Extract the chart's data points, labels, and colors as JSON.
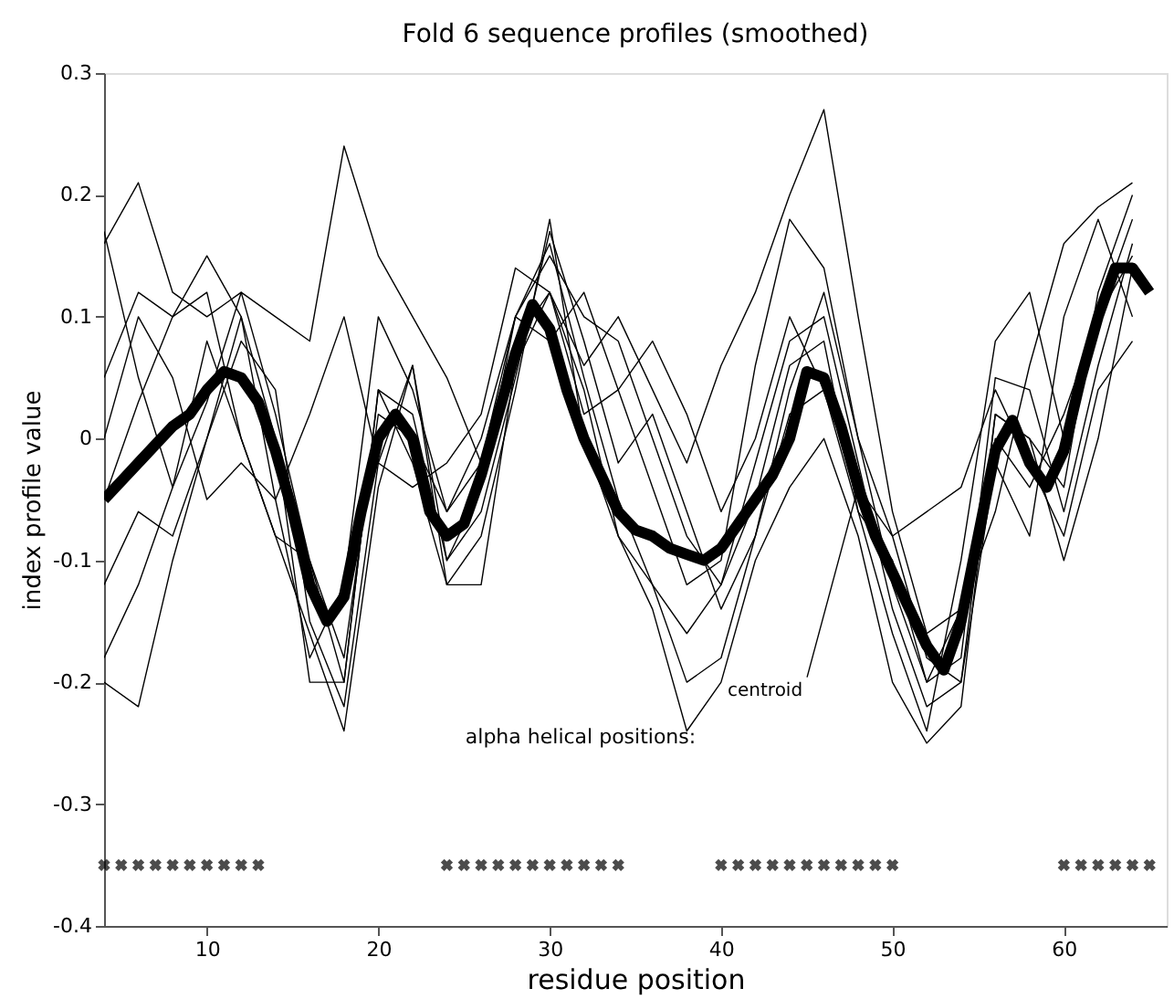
{
  "chart_data": {
    "type": "line",
    "title": "Fold 6 sequence profiles (smoothed)",
    "xlabel": "residue position",
    "ylabel": "index profile value",
    "x": [
      4,
      6,
      8,
      10,
      12,
      14,
      16,
      18,
      20,
      22,
      24,
      26,
      28,
      30,
      32,
      34,
      36,
      38,
      40,
      42,
      44,
      46,
      48,
      50,
      52,
      54,
      56,
      58,
      60,
      62,
      64
    ],
    "xlim": [
      4,
      66
    ],
    "ylim": [
      -0.4,
      0.3
    ],
    "xticks": [
      10,
      20,
      30,
      40,
      50,
      60
    ],
    "yticks": [
      -0.4,
      -0.3,
      -0.2,
      -0.1,
      0,
      0.1,
      0.2,
      0.3
    ],
    "grid": false,
    "marker": "none",
    "line_style": "solid",
    "annotations": [
      "alpha helical positions:",
      {
        "text": "centroid",
        "x": 48,
        "y": -0.04
      }
    ],
    "series": [
      {
        "color": "#000000",
        "values": [
          0.16,
          0.21,
          0.12,
          0.1,
          0.12,
          0.02,
          -0.1,
          -0.2,
          0.04,
          0.02,
          -0.1,
          -0.04,
          0.1,
          0.16,
          0.05,
          -0.05,
          -0.12,
          -0.16,
          -0.12,
          -0.02,
          0.08,
          0.1,
          -0.02,
          -0.14,
          -0.22,
          -0.2,
          0.02,
          0.0,
          -0.04,
          0.12,
          0.2
        ]
      },
      {
        "color": "#000000",
        "values": [
          -0.2,
          -0.22,
          -0.1,
          0.0,
          0.08,
          0.04,
          -0.15,
          -0.22,
          -0.02,
          0.06,
          -0.1,
          -0.06,
          0.05,
          0.17,
          0.08,
          -0.02,
          0.02,
          -0.06,
          -0.14,
          -0.08,
          0.04,
          0.12,
          0.0,
          -0.12,
          -0.2,
          -0.18,
          0.05,
          0.04,
          -0.06,
          0.06,
          0.16
        ]
      },
      {
        "color": "#000000",
        "values": [
          -0.05,
          0.03,
          0.1,
          0.15,
          0.1,
          -0.05,
          -0.18,
          -0.12,
          0.1,
          0.04,
          -0.06,
          0.0,
          0.1,
          0.15,
          0.1,
          0.08,
          0.0,
          -0.08,
          -0.12,
          -0.05,
          0.06,
          0.08,
          -0.06,
          -0.16,
          -0.24,
          -0.1,
          0.08,
          0.12,
          0.0,
          0.1,
          0.18
        ]
      },
      {
        "color": "#000000",
        "values": [
          0.17,
          0.05,
          -0.04,
          0.03,
          0.12,
          0.1,
          0.08,
          0.24,
          0.15,
          0.1,
          0.05,
          -0.02,
          0.08,
          0.12,
          0.06,
          0.1,
          0.04,
          -0.02,
          0.06,
          0.12,
          0.2,
          0.27,
          0.1,
          -0.06,
          -0.16,
          -0.14,
          -0.06,
          0.06,
          0.16,
          0.19,
          0.21
        ]
      },
      {
        "color": "#000000",
        "values": [
          -0.12,
          -0.06,
          -0.08,
          0.0,
          0.1,
          0.0,
          -0.2,
          -0.2,
          0.04,
          -0.02,
          -0.12,
          -0.12,
          0.06,
          0.12,
          0.04,
          -0.08,
          -0.12,
          -0.2,
          -0.18,
          -0.08,
          0.02,
          0.04,
          -0.06,
          -0.1,
          -0.2,
          -0.14,
          0.0,
          -0.04,
          0.02,
          0.1,
          0.15
        ]
      },
      {
        "color": "#000000",
        "values": [
          0.0,
          0.1,
          0.05,
          -0.05,
          -0.02,
          -0.05,
          0.02,
          0.1,
          -0.02,
          -0.04,
          -0.02,
          0.02,
          0.14,
          0.12,
          0.02,
          0.04,
          0.08,
          0.02,
          -0.06,
          0.0,
          0.1,
          0.04,
          -0.04,
          -0.08,
          -0.06,
          -0.04,
          0.04,
          -0.02,
          -0.08,
          0.04,
          0.08
        ]
      },
      {
        "color": "#000000",
        "values": [
          -0.18,
          -0.12,
          -0.04,
          0.08,
          0.0,
          -0.08,
          -0.16,
          -0.24,
          -0.04,
          0.06,
          -0.12,
          -0.08,
          0.04,
          0.18,
          0.0,
          -0.08,
          -0.14,
          -0.24,
          -0.2,
          -0.1,
          -0.04,
          0.0,
          -0.08,
          -0.2,
          -0.25,
          -0.22,
          0.02,
          0.0,
          -0.1,
          0.0,
          0.14
        ]
      },
      {
        "color": "#000000",
        "values": [
          0.05,
          0.12,
          0.1,
          0.12,
          0.0,
          -0.08,
          -0.1,
          -0.18,
          0.02,
          0.0,
          -0.06,
          -0.02,
          0.1,
          0.08,
          0.12,
          0.04,
          -0.04,
          -0.12,
          -0.1,
          0.06,
          0.18,
          0.14,
          0.0,
          -0.08,
          -0.18,
          -0.2,
          -0.02,
          -0.08,
          0.1,
          0.18,
          0.1
        ]
      },
      {
        "color": "#000000",
        "x": [
          4,
          5,
          6,
          7,
          8,
          9,
          10,
          11,
          12,
          13,
          14,
          15,
          16,
          17,
          18,
          19,
          20,
          21,
          22,
          23,
          24,
          25,
          26,
          27,
          28,
          29,
          30,
          31,
          32,
          33,
          34,
          35,
          36,
          37,
          38,
          39,
          40,
          41,
          42,
          43,
          44,
          45,
          46,
          47,
          48,
          49,
          50,
          51,
          52,
          53,
          54,
          55,
          56,
          57,
          58,
          59,
          60,
          61,
          62,
          63,
          64,
          65
        ],
        "values": [
          -0.05,
          -0.035,
          -0.02,
          -0.005,
          0.01,
          0.02,
          0.04,
          0.055,
          0.05,
          0.03,
          -0.01,
          -0.06,
          -0.12,
          -0.15,
          -0.13,
          -0.06,
          0.0,
          0.02,
          0.0,
          -0.06,
          -0.08,
          -0.07,
          -0.03,
          0.02,
          0.07,
          0.11,
          0.09,
          0.04,
          0.0,
          -0.03,
          -0.06,
          -0.075,
          -0.08,
          -0.09,
          -0.095,
          -0.1,
          -0.09,
          -0.07,
          -0.05,
          -0.03,
          0.0,
          0.055,
          0.05,
          0.01,
          -0.04,
          -0.08,
          -0.11,
          -0.14,
          -0.17,
          -0.19,
          -0.15,
          -0.08,
          -0.01,
          0.015,
          -0.02,
          -0.04,
          -0.01,
          0.05,
          0.1,
          0.14,
          0.14,
          0.12
        ]
      },
      {
        "type": "scatter",
        "marker": "cross",
        "color": "#000000",
        "x": [
          4,
          5,
          6,
          7,
          8,
          9,
          10,
          11,
          12,
          13,
          24,
          25,
          26,
          27,
          28,
          29,
          30,
          31,
          32,
          33,
          34,
          40,
          41,
          42,
          43,
          44,
          45,
          46,
          47,
          48,
          49,
          50,
          60,
          61,
          62,
          63,
          64,
          65
        ],
        "values": [
          -0.35,
          -0.35,
          -0.35,
          -0.35,
          -0.35,
          -0.35,
          -0.35,
          -0.35,
          -0.35,
          -0.35,
          -0.35,
          -0.35,
          -0.35,
          -0.35,
          -0.35,
          -0.35,
          -0.35,
          -0.35,
          -0.35,
          -0.35,
          -0.35,
          -0.35,
          -0.35,
          -0.35,
          -0.35,
          -0.35,
          -0.35,
          -0.35,
          -0.35,
          -0.35,
          -0.35,
          -0.35,
          -0.35,
          -0.35,
          -0.35,
          -0.35,
          -0.35,
          -0.35
        ]
      }
    ]
  }
}
